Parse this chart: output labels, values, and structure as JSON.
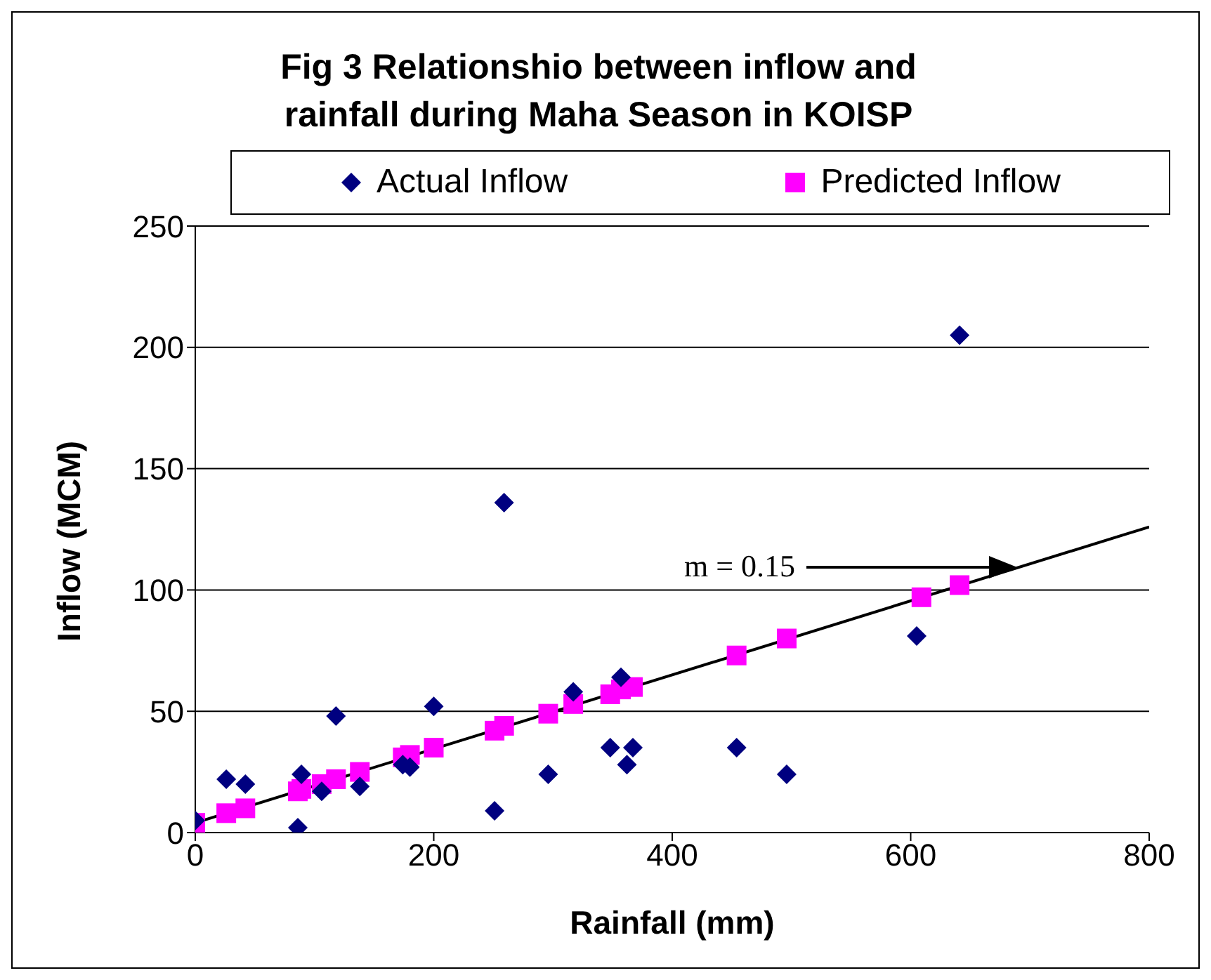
{
  "chart_data": {
    "type": "scatter",
    "title": "Fig 3 Relationshio between inflow and rainfall during Maha Season in KOISP",
    "xlabel": "Rainfall (mm)",
    "ylabel": "Inflow (MCM)",
    "xlim": [
      0,
      800
    ],
    "xticks": [
      0,
      200,
      400,
      600,
      800
    ],
    "ylim": [
      0,
      250
    ],
    "yticks": [
      0,
      50,
      100,
      150,
      200,
      250
    ],
    "grid": "y",
    "legend": "top",
    "annotations": [
      "m = 0.15"
    ],
    "series": [
      {
        "name": "Actual Inflow",
        "color": "#000080",
        "marker": "diamond",
        "x": [
          0,
          26,
          42,
          86,
          89,
          106,
          118,
          138,
          174,
          180,
          200,
          251,
          259,
          296,
          317,
          348,
          357,
          362,
          367,
          454,
          496,
          605,
          641
        ],
        "values": [
          5,
          22,
          20,
          2,
          24,
          17,
          48,
          19,
          28,
          27,
          52,
          9,
          136,
          24,
          58,
          35,
          64,
          28,
          35,
          35,
          24,
          81,
          205
        ]
      },
      {
        "name": "Predicted Inflow",
        "color": "#ff00ff",
        "marker": "square",
        "x": [
          0,
          26,
          42,
          86,
          89,
          106,
          118,
          138,
          174,
          180,
          200,
          251,
          259,
          296,
          317,
          348,
          357,
          362,
          367,
          454,
          496,
          609,
          641
        ],
        "values": [
          4,
          8,
          10,
          17,
          18,
          20,
          22,
          25,
          31,
          32,
          35,
          42,
          44,
          49,
          53,
          57,
          59,
          null,
          60,
          73,
          80,
          97,
          102
        ]
      },
      {
        "type": "line",
        "color": "#000000",
        "marker": "none",
        "x": [
          0,
          800
        ],
        "values": [
          4,
          126
        ]
      }
    ]
  }
}
